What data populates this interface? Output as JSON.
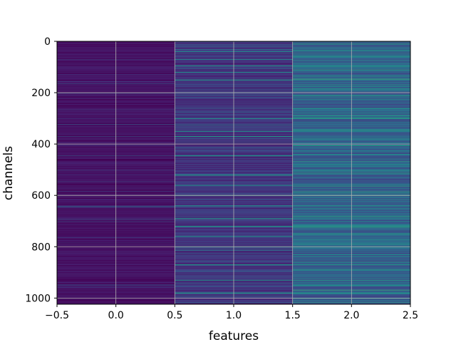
{
  "chart_data": {
    "type": "heatmap",
    "title": "",
    "xlabel": "features",
    "ylabel": "channels",
    "xlim": [
      -0.5,
      2.5
    ],
    "ylim": [
      1024,
      0
    ],
    "y_inverted": true,
    "grid": true,
    "colormap": "viridis",
    "num_channels": 1024,
    "columns": [
      {
        "feature": 0,
        "typical_intensity": 0.05,
        "bright_rows": []
      },
      {
        "feature": 1,
        "typical_intensity": 0.15,
        "bright_rows": [
          40,
          70,
          95,
          120,
          150,
          300,
          350,
          370,
          445,
          520,
          560,
          600,
          640,
          690,
          720,
          760,
          800,
          870,
          930,
          980
        ]
      },
      {
        "feature": 2,
        "typical_intensity": 0.3,
        "bright_rows": [
          10,
          35,
          60,
          95,
          135,
          175,
          210,
          260,
          300,
          345,
          350,
          380,
          405,
          440,
          480,
          515,
          560,
          590,
          600,
          640,
          680,
          690,
          720,
          750,
          790,
          800,
          830,
          870,
          890,
          930,
          950,
          980,
          1000
        ]
      }
    ],
    "xticks": [
      {
        "value": -0.5,
        "label": "−0.5"
      },
      {
        "value": 0.0,
        "label": "0.0"
      },
      {
        "value": 0.5,
        "label": "0.5"
      },
      {
        "value": 1.0,
        "label": "1.0"
      },
      {
        "value": 1.5,
        "label": "1.5"
      },
      {
        "value": 2.0,
        "label": "2.0"
      },
      {
        "value": 2.5,
        "label": "2.5"
      }
    ],
    "yticks": [
      {
        "value": 0,
        "label": "0"
      },
      {
        "value": 200,
        "label": "200"
      },
      {
        "value": 400,
        "label": "400"
      },
      {
        "value": 600,
        "label": "600"
      },
      {
        "value": 800,
        "label": "800"
      },
      {
        "value": 1000,
        "label": "1000"
      }
    ]
  }
}
